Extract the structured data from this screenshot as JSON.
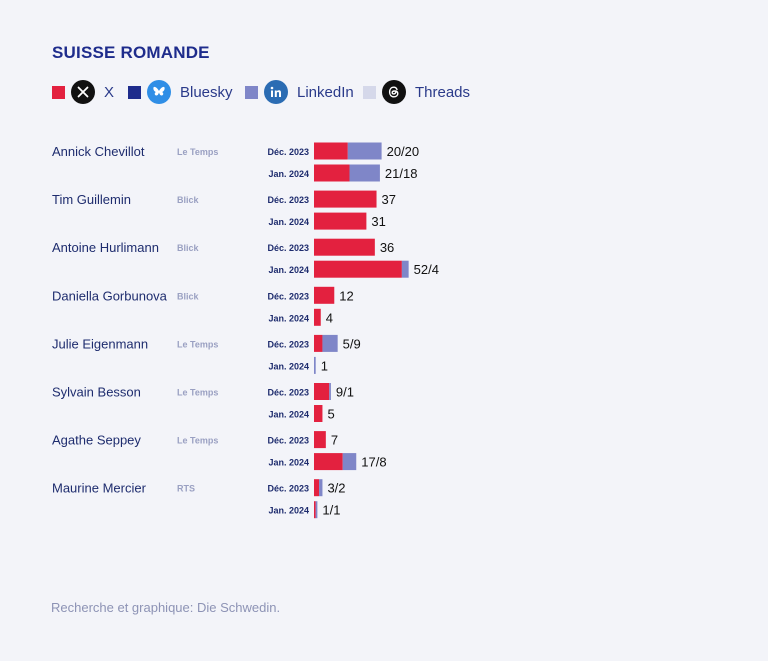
{
  "title": "SUISSE ROMANDE",
  "legend": [
    {
      "label": "X",
      "color": "#e3213f",
      "icon": "x-logo-icon"
    },
    {
      "label": "Bluesky",
      "color": "#1e2c8c",
      "icon": "bluesky-butterfly-icon"
    },
    {
      "label": "LinkedIn",
      "color": "#7f86c8",
      "icon": "linkedin-logo-icon"
    },
    {
      "label": "Threads",
      "color": "#d5d8ea",
      "icon": "threads-logo-icon"
    }
  ],
  "footer": "Recherche et graphique: Die Schwedin.",
  "chart_data": {
    "type": "bar",
    "orientation": "horizontal",
    "stacked": true,
    "periods": [
      "Déc. 2023",
      "Jan. 2024"
    ],
    "series_colors": {
      "X": "#e3213f",
      "LinkedIn": "#7f86c8"
    },
    "rows": [
      {
        "name": "Annick Chevillot",
        "outlet": "Le Temps",
        "values": [
          {
            "period": "Déc. 2023",
            "X": 20,
            "LinkedIn": 20,
            "label": "20/20"
          },
          {
            "period": "Jan. 2024",
            "X": 21,
            "LinkedIn": 18,
            "label": "21/18"
          }
        ]
      },
      {
        "name": "Tim Guillemin",
        "outlet": "Blick",
        "values": [
          {
            "period": "Déc. 2023",
            "X": 37,
            "LinkedIn": 0,
            "label": "37"
          },
          {
            "period": "Jan. 2024",
            "X": 31,
            "LinkedIn": 0,
            "label": "31"
          }
        ]
      },
      {
        "name": "Antoine Hurlimann",
        "outlet": "Blick",
        "values": [
          {
            "period": "Déc. 2023",
            "X": 36,
            "LinkedIn": 0,
            "label": "36"
          },
          {
            "period": "Jan. 2024",
            "X": 52,
            "LinkedIn": 4,
            "label": "52/4"
          }
        ]
      },
      {
        "name": "Daniella Gorbunova",
        "outlet": "Blick",
        "values": [
          {
            "period": "Déc. 2023",
            "X": 12,
            "LinkedIn": 0,
            "label": "12"
          },
          {
            "period": "Jan. 2024",
            "X": 4,
            "LinkedIn": 0,
            "label": "4"
          }
        ]
      },
      {
        "name": "Julie Eigenmann",
        "outlet": "Le Temps",
        "values": [
          {
            "period": "Déc. 2023",
            "X": 5,
            "LinkedIn": 9,
            "label": "5/9"
          },
          {
            "period": "Jan. 2024",
            "X": 0,
            "LinkedIn": 1,
            "label": "1"
          }
        ]
      },
      {
        "name": "Sylvain Besson",
        "outlet": "Le Temps",
        "values": [
          {
            "period": "Déc. 2023",
            "X": 9,
            "LinkedIn": 1,
            "label": "9/1"
          },
          {
            "period": "Jan. 2024",
            "X": 5,
            "LinkedIn": 0,
            "label": "5"
          }
        ]
      },
      {
        "name": "Agathe Seppey",
        "outlet": "Le Temps",
        "values": [
          {
            "period": "Déc. 2023",
            "X": 7,
            "LinkedIn": 0,
            "label": "7"
          },
          {
            "period": "Jan. 2024",
            "X": 17,
            "LinkedIn": 8,
            "label": "17/8"
          }
        ]
      },
      {
        "name": "Maurine Mercier",
        "outlet": "RTS",
        "values": [
          {
            "period": "Déc. 2023",
            "X": 3,
            "LinkedIn": 2,
            "label": "3/2"
          },
          {
            "period": "Jan. 2024",
            "X": 1,
            "LinkedIn": 1,
            "label": "1/1"
          }
        ]
      }
    ]
  }
}
